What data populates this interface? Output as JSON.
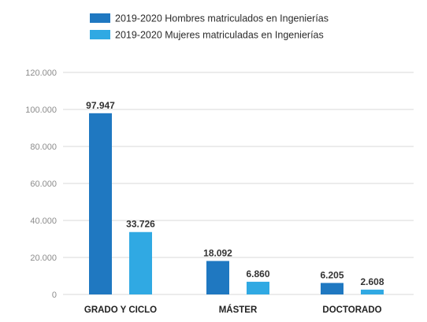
{
  "chart_data": {
    "type": "bar",
    "categories": [
      "GRADO Y CICLO",
      "MÁSTER",
      "DOCTORADO"
    ],
    "series": [
      {
        "name": "2019-2020 Hombres matriculados en Ingenierías",
        "values": [
          97947,
          18092,
          6205
        ],
        "labels": [
          "97.947",
          "18.092",
          "6.205"
        ],
        "color": "#1f78c1"
      },
      {
        "name": "2019-2020 Mujeres matriculadas en Ingenierías",
        "values": [
          33726,
          6860,
          2608
        ],
        "labels": [
          "33.726",
          "6.860",
          "2.608"
        ],
        "color": "#30a9e3"
      }
    ],
    "ylim": [
      0,
      120000
    ],
    "yticks": [
      0,
      20000,
      40000,
      60000,
      80000,
      100000,
      120000
    ],
    "ytick_labels": [
      "0",
      "20.000",
      "40.000",
      "60.000",
      "80.000",
      "100.000",
      "120.000"
    ],
    "grid": true,
    "legend_position": "top-left",
    "gridline_color": "#d9d9d9",
    "tick_label_color": "#8c8c8c"
  }
}
